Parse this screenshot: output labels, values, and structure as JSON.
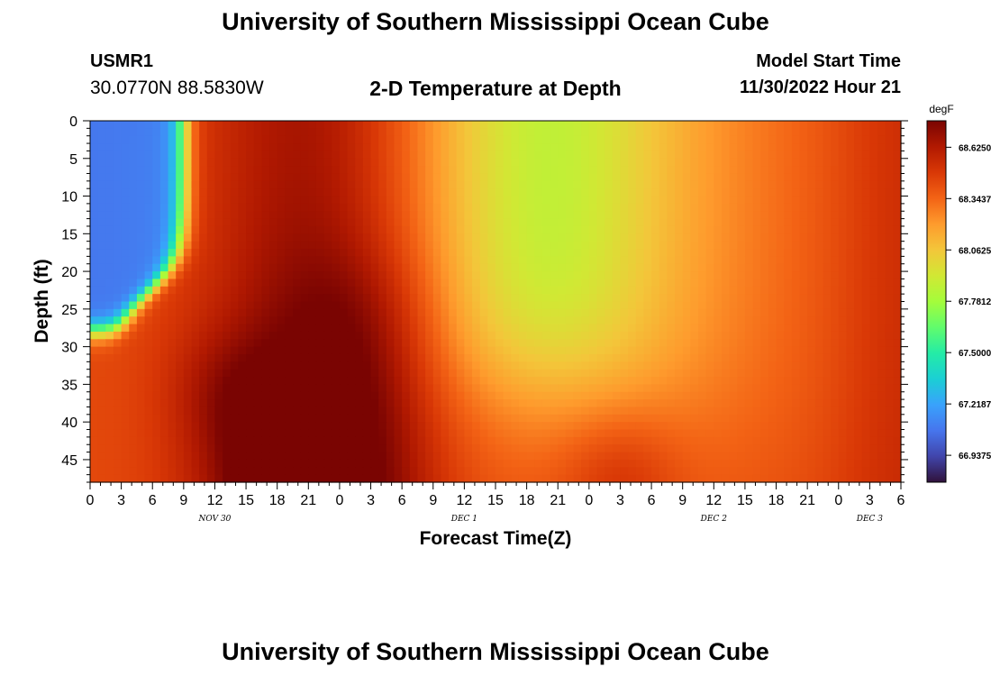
{
  "header": {
    "title": "University of Southern Mississippi Ocean Cube",
    "station_id": "USMR1",
    "coordinates": "30.0770N  88.5830W",
    "subtitle": "2-D Temperature at Depth",
    "start_time_label": "Model Start Time",
    "start_time_value": "11/30/2022 Hour 21"
  },
  "footer": {
    "title": "University of Southern Mississippi Ocean Cube"
  },
  "chart_data": {
    "type": "heatmap",
    "xlabel": "Forecast Time(Z)",
    "ylabel": "Depth (ft)",
    "x_range_hours_from_nov30_00z": [
      0,
      78
    ],
    "ylim": [
      0,
      48
    ],
    "y_reversed": true,
    "x_ticks": [
      "0",
      "3",
      "6",
      "9",
      "12",
      "15",
      "18",
      "21",
      "0",
      "3",
      "6",
      "9",
      "12",
      "15",
      "18",
      "21",
      "0",
      "3",
      "6",
      "9",
      "12",
      "15",
      "18",
      "21",
      "0",
      "3",
      "6"
    ],
    "y_ticks": [
      "0",
      "5",
      "10",
      "15",
      "20",
      "25",
      "30",
      "35",
      "40",
      "45"
    ],
    "day_labels": [
      {
        "text": "NOV 30",
        "at_hour": 12
      },
      {
        "text": "DEC 1",
        "at_hour": 36
      },
      {
        "text": "DEC 2",
        "at_hour": 60
      },
      {
        "text": "DEC 3",
        "at_hour": 75
      }
    ],
    "colorbar": {
      "unit": "degF",
      "range": [
        66.79,
        68.77
      ],
      "tick_labels": [
        "68.6250",
        "68.3437",
        "68.0625",
        "67.7812",
        "67.5000",
        "67.2187",
        "66.9375"
      ],
      "tick_values": [
        68.625,
        68.34375,
        68.0625,
        67.78125,
        67.5,
        67.21875,
        66.9375
      ]
    },
    "colors": {
      "scale": [
        "#30123b",
        "#4145ab",
        "#4675ed",
        "#39a2fc",
        "#1bcfd4",
        "#24eca6",
        "#61fc6c",
        "#a4fc3b",
        "#d1e834",
        "#f3c63a",
        "#fe9b2d",
        "#f36315",
        "#d93806",
        "#b11901",
        "#7a0402"
      ]
    },
    "grid": false,
    "legend": "right colorbar",
    "features": [
      {
        "name": "cold wedge",
        "x_hours": [
          0,
          12
        ],
        "depth_ft": [
          0,
          28
        ],
        "value_degF": 66.9
      },
      {
        "name": "warm tongue",
        "x_hours": [
          12,
          30
        ],
        "depth_ft": [
          0,
          48
        ],
        "value_degF": 68.6
      },
      {
        "name": "warm bottom core",
        "x_hours": [
          14,
          20
        ],
        "depth_ft": [
          38,
          48
        ],
        "value_degF": 68.75
      },
      {
        "name": "cool plume",
        "x_hours": [
          36,
          52
        ],
        "depth_ft": [
          0,
          45
        ],
        "value_degF": 68.05
      },
      {
        "name": "warm bottom bump",
        "x_hours": [
          46,
          58
        ],
        "depth_ft": [
          30,
          48
        ],
        "value_degF": 68.45
      }
    ]
  }
}
